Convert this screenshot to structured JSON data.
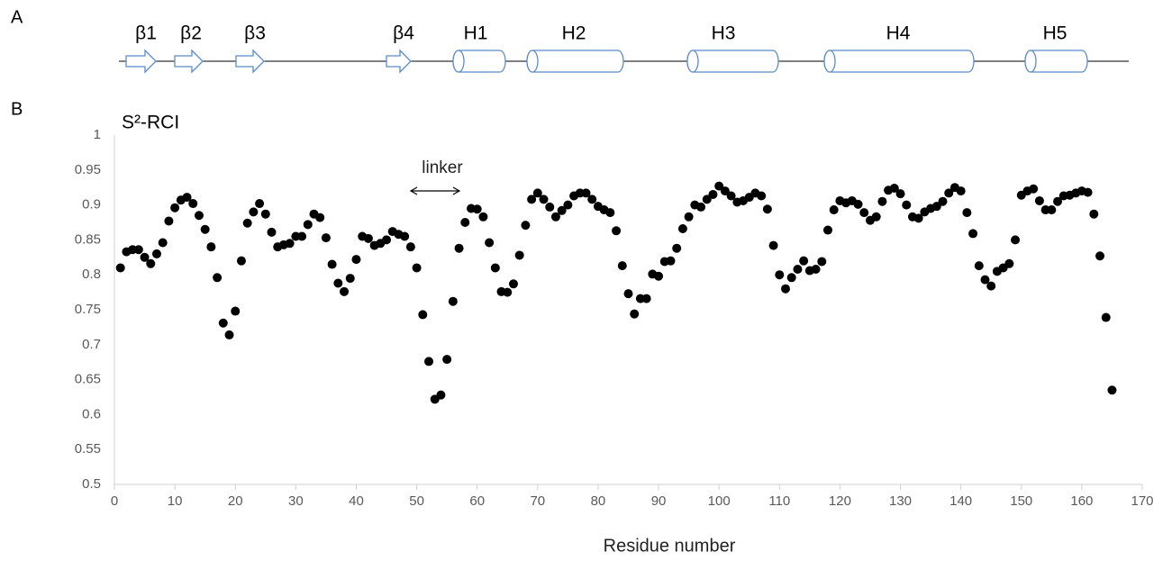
{
  "panel_labels": [
    "A",
    "B"
  ],
  "structure": {
    "labels": [
      "β1",
      "β2",
      "β3",
      "β4",
      "H1",
      "H2",
      "H3",
      "H4",
      "H5"
    ]
  },
  "chart_data": {
    "type": "scatter",
    "title": "S²-RCI",
    "x_label": "Residue number",
    "annotation": "linker",
    "color": "#000000",
    "xlim": [
      0,
      170
    ],
    "xticks": [
      0,
      10,
      20,
      30,
      40,
      50,
      60,
      70,
      80,
      90,
      100,
      110,
      120,
      130,
      140,
      150,
      160,
      170
    ],
    "ylim": [
      0.5,
      1
    ],
    "yticks": [
      0.5,
      0.55,
      0.6,
      0.65,
      0.7,
      0.75,
      0.8,
      0.85,
      0.9,
      0.95,
      1
    ],
    "grid": false,
    "x": [
      1,
      2,
      3,
      4,
      5,
      6,
      7,
      8,
      9,
      10,
      11,
      12,
      13,
      14,
      15,
      16,
      17,
      18,
      19,
      20,
      21,
      22,
      23,
      24,
      25,
      26,
      27,
      28,
      29,
      30,
      31,
      32,
      33,
      34,
      35,
      36,
      37,
      38,
      39,
      40,
      41,
      42,
      43,
      44,
      45,
      46,
      47,
      48,
      49,
      50,
      51,
      52,
      53,
      54,
      55,
      56,
      57,
      58,
      59,
      60,
      61,
      62,
      63,
      64,
      65,
      66,
      67,
      68,
      69,
      70,
      71,
      72,
      73,
      74,
      75,
      76,
      77,
      78,
      79,
      80,
      81,
      82,
      83,
      84,
      85,
      86,
      87,
      88,
      89,
      90,
      91,
      92,
      93,
      94,
      95,
      96,
      97,
      98,
      99,
      100,
      101,
      102,
      103,
      104,
      105,
      106,
      107,
      108,
      109,
      110,
      111,
      112,
      113,
      114,
      115,
      116,
      117,
      118,
      119,
      120,
      121,
      122,
      123,
      124,
      125,
      126,
      127,
      128,
      129,
      130,
      131,
      132,
      133,
      134,
      135,
      136,
      137,
      138,
      139,
      140,
      141,
      142,
      143,
      144,
      145,
      146,
      147,
      148,
      149,
      150,
      151,
      152,
      153,
      154,
      155,
      156,
      157,
      158,
      159,
      160,
      161,
      162,
      163,
      164,
      165
    ],
    "values": [
      0.81,
      0.833,
      0.836,
      0.836,
      0.825,
      0.816,
      0.83,
      0.846,
      0.877,
      0.896,
      0.907,
      0.911,
      0.902,
      0.885,
      0.865,
      0.84,
      0.796,
      0.731,
      0.714,
      0.748,
      0.82,
      0.874,
      0.89,
      0.902,
      0.887,
      0.861,
      0.84,
      0.843,
      0.845,
      0.855,
      0.855,
      0.872,
      0.887,
      0.882,
      0.853,
      0.815,
      0.788,
      0.776,
      0.795,
      0.822,
      0.855,
      0.852,
      0.842,
      0.845,
      0.85,
      0.862,
      0.858,
      0.855,
      0.84,
      0.81,
      0.743,
      0.676,
      0.622,
      0.628,
      0.679,
      0.762,
      0.838,
      0.875,
      0.895,
      0.894,
      0.883,
      0.846,
      0.81,
      0.776,
      0.775,
      0.787,
      0.828,
      0.871,
      0.908,
      0.917,
      0.908,
      0.897,
      0.883,
      0.892,
      0.9,
      0.913,
      0.917,
      0.917,
      0.908,
      0.898,
      0.893,
      0.889,
      0.863,
      0.813,
      0.773,
      0.744,
      0.766,
      0.766,
      0.801,
      0.798,
      0.819,
      0.82,
      0.838,
      0.866,
      0.883,
      0.9,
      0.897,
      0.908,
      0.915,
      0.927,
      0.92,
      0.913,
      0.904,
      0.906,
      0.911,
      0.917,
      0.913,
      0.894,
      0.842,
      0.8,
      0.78,
      0.796,
      0.808,
      0.82,
      0.806,
      0.808,
      0.819,
      0.864,
      0.893,
      0.906,
      0.903,
      0.906,
      0.901,
      0.889,
      0.878,
      0.883,
      0.905,
      0.921,
      0.924,
      0.916,
      0.9,
      0.883,
      0.881,
      0.89,
      0.895,
      0.898,
      0.905,
      0.917,
      0.925,
      0.92,
      0.889,
      0.859,
      0.813,
      0.793,
      0.784,
      0.805,
      0.81,
      0.816,
      0.85,
      0.914,
      0.92,
      0.923,
      0.906,
      0.893,
      0.893,
      0.905,
      0.913,
      0.914,
      0.917,
      0.92,
      0.918,
      0.887,
      0.827,
      0.739,
      0.635
    ]
  }
}
